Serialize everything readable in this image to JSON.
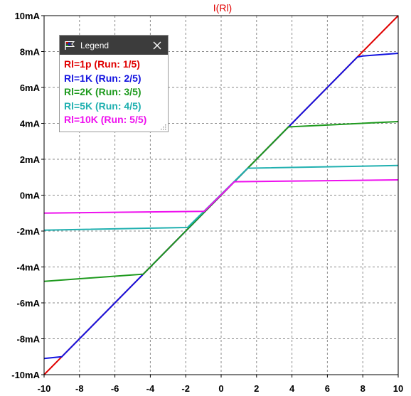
{
  "chart_data": {
    "type": "line",
    "title": "I(Rl)",
    "xlabel": "",
    "ylabel": "",
    "xlim": [
      -10,
      10
    ],
    "ylim": [
      -10,
      10
    ],
    "y_unit": "mA",
    "x_ticks": [
      "-10",
      "-8",
      "-6",
      "-4",
      "-2",
      "0",
      "2",
      "4",
      "6",
      "8",
      "10"
    ],
    "y_ticks": [
      "10mA",
      "8mA",
      "6mA",
      "4mA",
      "2mA",
      "0mA",
      "-2mA",
      "-4mA",
      "-6mA",
      "-8mA",
      "-10mA"
    ],
    "grid": true,
    "legend_position": "top-left",
    "series": [
      {
        "name": "Rl=1p  (Run: 1/5)",
        "color": "#e00000",
        "x": [
          -10,
          10
        ],
        "y": [
          -10,
          10
        ]
      },
      {
        "name": "Rl=1K  (Run: 2/5)",
        "color": "#1414e0",
        "x": [
          -10,
          -9,
          -8.8,
          7.7,
          8,
          10
        ],
        "y": [
          -9.1,
          -9.0,
          -8.8,
          7.7,
          7.75,
          7.9
        ]
      },
      {
        "name": "Rl=2K  (Run: 3/5)",
        "color": "#1e9a1e",
        "x": [
          -10,
          -4.4,
          3.8,
          10
        ],
        "y": [
          -4.8,
          -4.4,
          3.8,
          4.1
        ]
      },
      {
        "name": "Rl=5K  (Run: 4/5)",
        "color": "#20b0b0",
        "x": [
          -10,
          -1.9,
          1.5,
          10
        ],
        "y": [
          -1.95,
          -1.8,
          1.5,
          1.65
        ]
      },
      {
        "name": "Rl=10K  (Run: 5/5)",
        "color": "#ee10ee",
        "x": [
          -10,
          -0.95,
          0.75,
          10
        ],
        "y": [
          -1.0,
          -0.9,
          0.75,
          0.85
        ]
      }
    ]
  },
  "legend": {
    "title": "Legend",
    "icons": {
      "header": "flag-icon",
      "close": "close-icon",
      "resize": "resize-grip-icon"
    }
  }
}
